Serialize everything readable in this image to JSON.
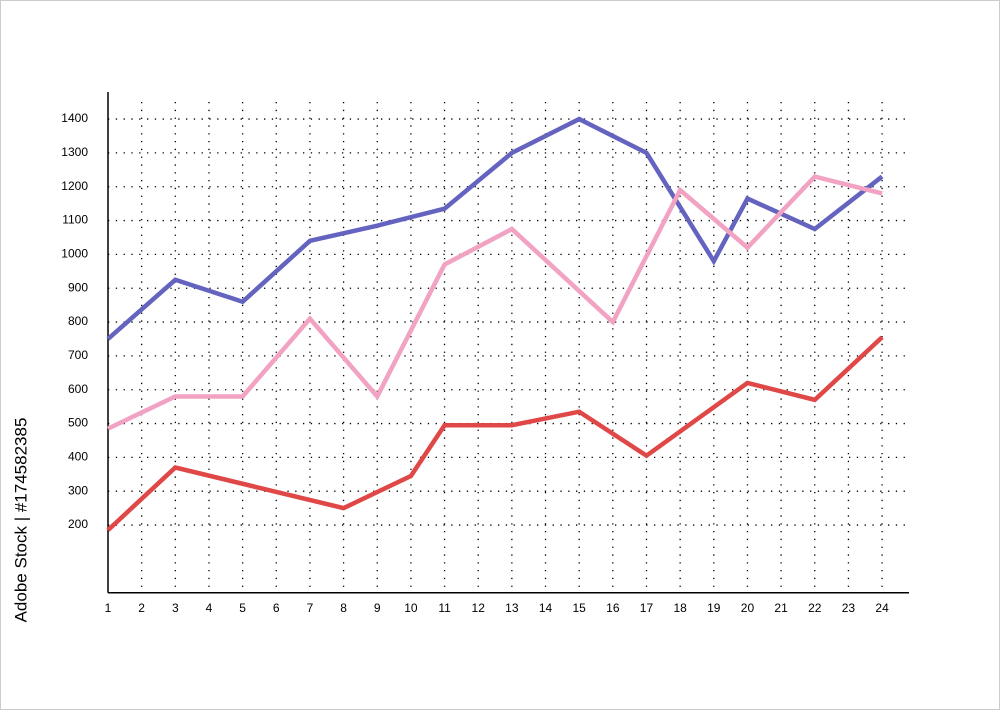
{
  "chart_data": {
    "type": "line",
    "watermark": "Adobe Stock | #174582385",
    "xlim": [
      1,
      24.8
    ],
    "xticks": [
      1,
      2,
      3,
      4,
      5,
      6,
      7,
      8,
      9,
      10,
      11,
      12,
      13,
      14,
      15,
      16,
      17,
      18,
      19,
      20,
      21,
      22,
      23,
      24
    ],
    "ylim": [
      0,
      1480
    ],
    "yticks": [
      200,
      300,
      400,
      500,
      600,
      700,
      800,
      900,
      1000,
      1100,
      1200,
      1300,
      1400
    ],
    "grid": true,
    "series": [
      {
        "color": "#6464c0",
        "x": [
          1,
          3,
          5,
          7,
          9,
          11,
          13,
          15,
          17,
          19,
          20,
          22,
          24
        ],
        "values": [
          750,
          925,
          860,
          1040,
          1085,
          1135,
          1300,
          1400,
          1300,
          980,
          1165,
          1075,
          1230
        ]
      },
      {
        "color": "#f2a2c2",
        "x": [
          1,
          3,
          5,
          7,
          9,
          11,
          13,
          16,
          18,
          20,
          22,
          24
        ],
        "values": [
          485,
          580,
          580,
          810,
          580,
          970,
          1075,
          800,
          1190,
          1020,
          1230,
          1180
        ]
      },
      {
        "color": "#e04848",
        "x": [
          1,
          3,
          8,
          10,
          11,
          13,
          15,
          17,
          20,
          22,
          24
        ],
        "values": [
          185,
          370,
          250,
          345,
          495,
          495,
          535,
          405,
          620,
          570,
          755
        ]
      }
    ]
  }
}
